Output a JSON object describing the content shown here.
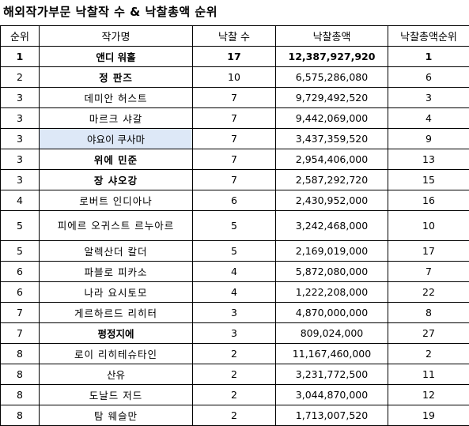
{
  "title": "해외작가부문 낙찰작 수 & 낙찰총액 순위",
  "headers": {
    "rank": "순위",
    "artist": "작가명",
    "count": "낙찰 수",
    "total": "낙찰총액",
    "total_rank": "낙찰총액순위"
  },
  "rows": [
    {
      "rank": "1",
      "artist": "앤디 워홀",
      "count": "17",
      "total": "12,387,927,920",
      "total_rank": "1"
    },
    {
      "rank": "2",
      "artist": "정 판즈",
      "count": "10",
      "total": "6,575,286,080",
      "total_rank": "6"
    },
    {
      "rank": "3",
      "artist": "데미안 허스트",
      "count": "7",
      "total": "9,729,492,520",
      "total_rank": "3"
    },
    {
      "rank": "3",
      "artist": "마르크 샤갈",
      "count": "7",
      "total": "9,442,069,000",
      "total_rank": "4"
    },
    {
      "rank": "3",
      "artist": "야요이 쿠사마",
      "count": "7",
      "total": "3,437,359,520",
      "total_rank": "9"
    },
    {
      "rank": "3",
      "artist": "위에 민준",
      "count": "7",
      "total": "2,954,406,000",
      "total_rank": "13"
    },
    {
      "rank": "3",
      "artist": "장 샤오강",
      "count": "7",
      "total": "2,587,292,720",
      "total_rank": "15"
    },
    {
      "rank": "4",
      "artist": "로버트 인디아나",
      "count": "6",
      "total": "2,430,952,000",
      "total_rank": "16"
    },
    {
      "rank": "5",
      "artist": "피에르 오귀스트 르누아르",
      "count": "5",
      "total": "3,242,468,000",
      "total_rank": "10"
    },
    {
      "rank": "5",
      "artist": "알렉산더 칼더",
      "count": "5",
      "total": "2,169,019,000",
      "total_rank": "17"
    },
    {
      "rank": "6",
      "artist": "파블로 피카소",
      "count": "4",
      "total": "5,872,080,000",
      "total_rank": "7"
    },
    {
      "rank": "6",
      "artist": "나라 요시토모",
      "count": "4",
      "total": "1,222,208,000",
      "total_rank": "22"
    },
    {
      "rank": "7",
      "artist": "게르하르드 리히터",
      "count": "3",
      "total": "4,870,000,000",
      "total_rank": "8"
    },
    {
      "rank": "7",
      "artist": "펑정지에",
      "count": "3",
      "total": "809,024,000",
      "total_rank": "27"
    },
    {
      "rank": "8",
      "artist": "로이 리히테슈타인",
      "count": "2",
      "total": "11,167,460,000",
      "total_rank": "2"
    },
    {
      "rank": "8",
      "artist": "산유",
      "count": "2",
      "total": "3,231,772,500",
      "total_rank": "11"
    },
    {
      "rank": "8",
      "artist": "도날드 저드",
      "count": "2",
      "total": "3,044,870,000",
      "total_rank": "12"
    },
    {
      "rank": "8",
      "artist": "탐 웨슬만",
      "count": "2",
      "total": "1,713,007,520",
      "total_rank": "19"
    }
  ]
}
